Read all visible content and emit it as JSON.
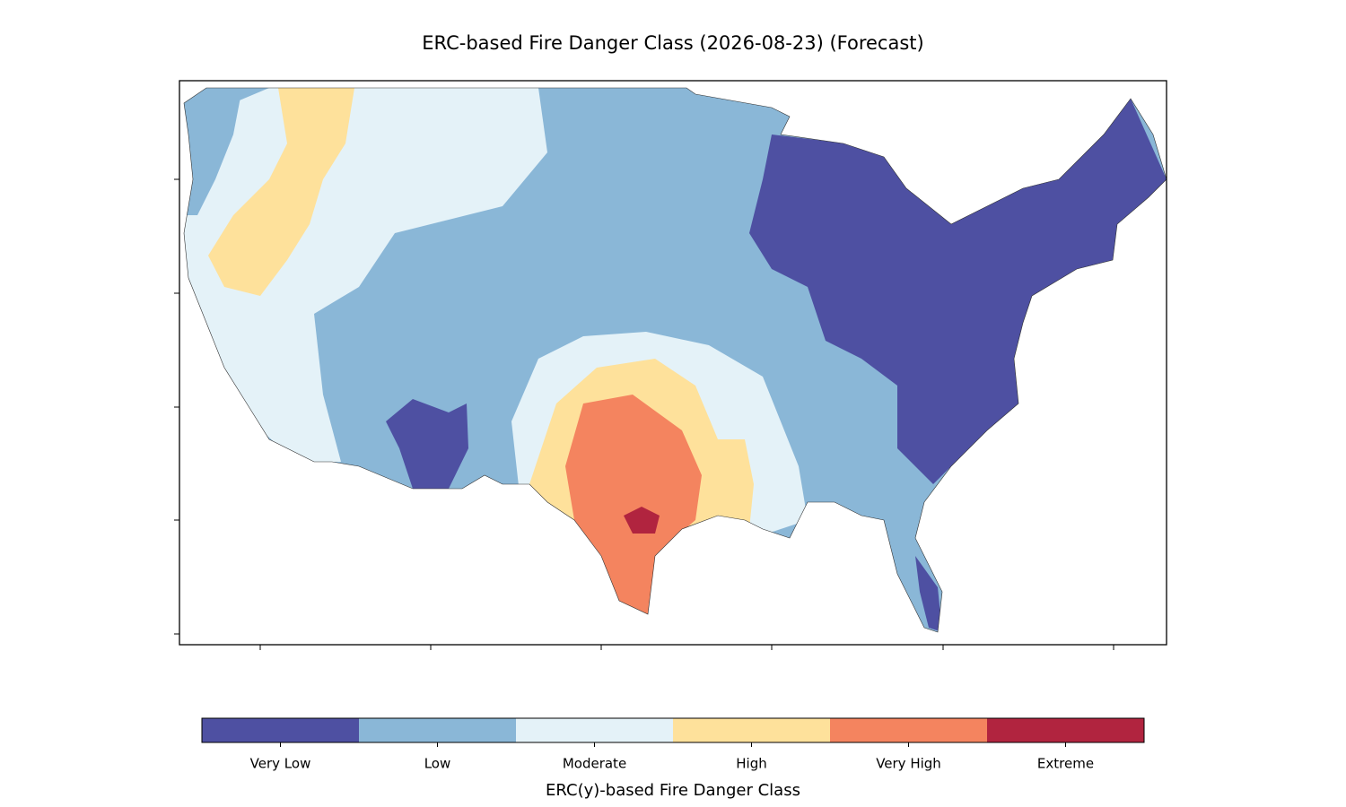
{
  "title": "ERC-based Fire Danger Class (2026-08-23) (Forecast)",
  "legend": {
    "label": "ERC(y)-based Fire Danger Class",
    "classes": [
      {
        "name": "Very Low",
        "color": "#4e50a2"
      },
      {
        "name": "Low",
        "color": "#8ab7d7"
      },
      {
        "name": "Moderate",
        "color": "#e4f2f8"
      },
      {
        "name": "High",
        "color": "#fee19b"
      },
      {
        "name": "Very High",
        "color": "#f4845f"
      },
      {
        "name": "Extreme",
        "color": "#b1243f"
      }
    ]
  }
}
